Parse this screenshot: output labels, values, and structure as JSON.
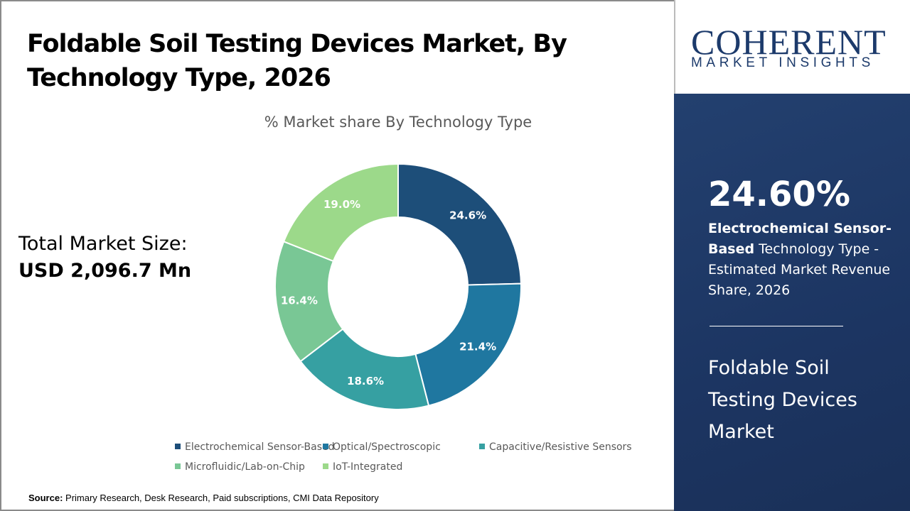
{
  "header": {
    "title": "Foldable Soil Testing Devices Market, By Technology Type, 2026"
  },
  "total": {
    "label": "Total Market Size:",
    "value": "USD 2,096.7 Mn"
  },
  "source": {
    "label": "Source:",
    "text": " Primary Research, Desk Research, Paid subscriptions, CMI Data Repository"
  },
  "logo": {
    "name": "COHERENT",
    "tagline": "MARKET INSIGHTS"
  },
  "highlight": {
    "value": "24.60%",
    "bold": "Electrochemical Sensor-Based",
    "rest": " Technology Type - Estimated Market Revenue Share, 2026",
    "market": "Foldable Soil Testing Devices Market"
  },
  "chart_data": {
    "type": "pie",
    "donut": true,
    "title": "% Market share By Technology Type",
    "categories": [
      "Electrochemical Sensor-Based",
      "Optical/Spectroscopic",
      "Capacitive/Resistive Sensors",
      "Microfluidic/Lab-on-Chip",
      "IoT-Integrated"
    ],
    "values": [
      24.6,
      21.4,
      18.6,
      16.4,
      19.0
    ],
    "labels": [
      "24.6%",
      "21.4%",
      "18.6%",
      "16.4%",
      "19.0%"
    ],
    "colors": [
      "#1d4e79",
      "#1f77a0",
      "#36a0a2",
      "#79c795",
      "#9cd98a"
    ],
    "legend": "bottom"
  }
}
